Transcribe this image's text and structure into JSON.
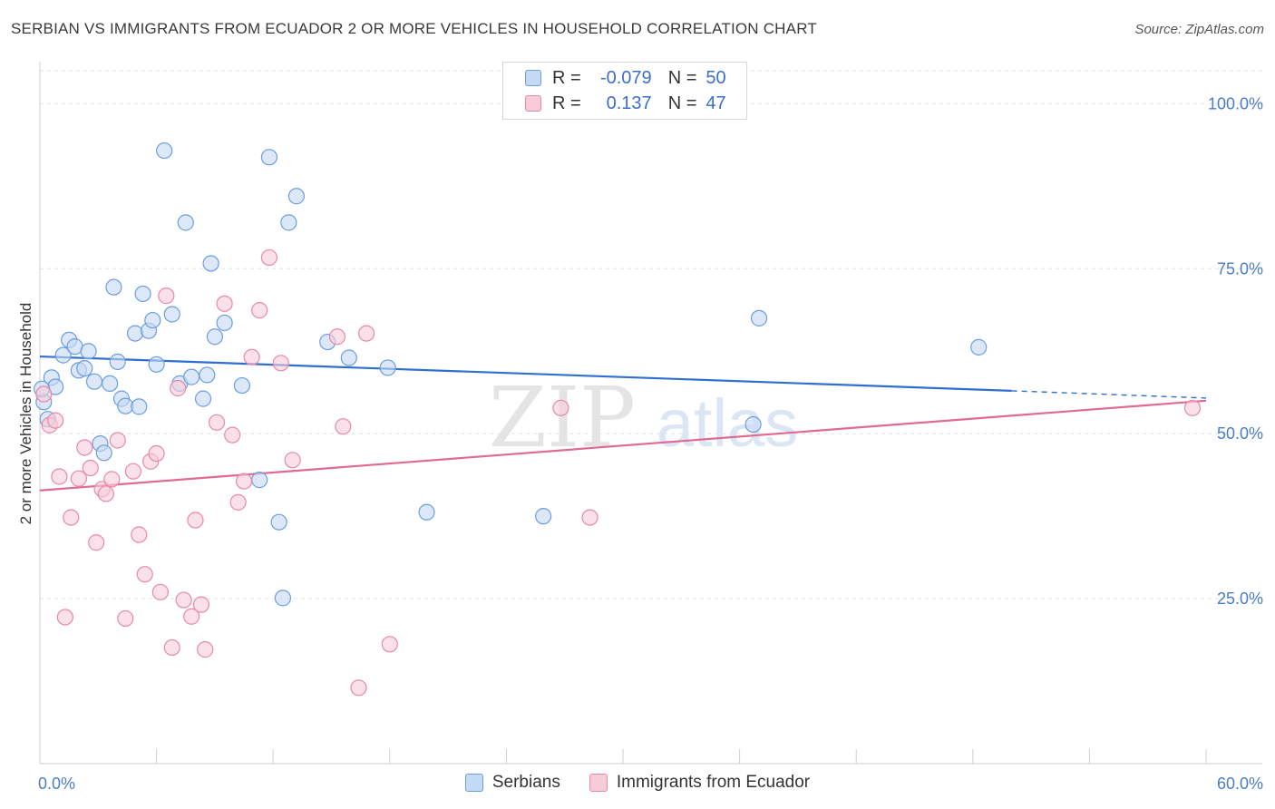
{
  "title": "SERBIAN VS IMMIGRANTS FROM ECUADOR 2 OR MORE VEHICLES IN HOUSEHOLD CORRELATION CHART",
  "source": "Source: ZipAtlas.com",
  "watermark": {
    "zip": "ZIP",
    "atlas": "atlas"
  },
  "legend": {
    "rows": [
      {
        "r_label": "R =",
        "r_value": "-0.079",
        "n_label": "N =",
        "n_value": "50"
      },
      {
        "r_label": "R =",
        "r_value": "0.137",
        "n_label": "N =",
        "n_value": "47"
      }
    ]
  },
  "chart_data": {
    "type": "scatter",
    "xlabel": "",
    "ylabel": "2 or more Vehicles in Household",
    "xlim": [
      0,
      60
    ],
    "ylim": [
      0,
      105
    ],
    "x_tick_labels": [
      "0.0%",
      "60.0%"
    ],
    "y_ticks": [
      25,
      50,
      75,
      100
    ],
    "y_tick_labels": [
      "25.0%",
      "50.0%",
      "75.0%",
      "100.0%"
    ],
    "grid": true,
    "legend_position": "bottom",
    "series": [
      {
        "name": "Serbians",
        "color": "#6b9de0",
        "fill": "#c4d9f3",
        "trend": {
          "x0": 0,
          "y0": 61.7,
          "x1": 50,
          "y1": 56.5,
          "dash_to_x": 60,
          "dash_to_y": 55.4
        },
        "points": [
          [
            0.2,
            54.8
          ],
          [
            0.4,
            52.2
          ],
          [
            0.6,
            58.5
          ],
          [
            0.8,
            57.1
          ],
          [
            1.2,
            61.9
          ],
          [
            1.5,
            64.2
          ],
          [
            1.8,
            63.2
          ],
          [
            2.0,
            59.6
          ],
          [
            2.3,
            59.9
          ],
          [
            2.5,
            62.5
          ],
          [
            2.8,
            57.9
          ],
          [
            3.1,
            48.5
          ],
          [
            3.3,
            47.1
          ],
          [
            3.6,
            57.6
          ],
          [
            3.8,
            72.2
          ],
          [
            4.0,
            60.9
          ],
          [
            4.2,
            55.3
          ],
          [
            4.4,
            54.2
          ],
          [
            4.9,
            65.2
          ],
          [
            5.1,
            54.1
          ],
          [
            5.3,
            71.2
          ],
          [
            5.6,
            65.6
          ],
          [
            5.8,
            67.2
          ],
          [
            6.0,
            60.5
          ],
          [
            6.4,
            92.9
          ],
          [
            6.8,
            68.1
          ],
          [
            7.2,
            57.6
          ],
          [
            7.5,
            82.0
          ],
          [
            7.8,
            58.6
          ],
          [
            8.4,
            55.3
          ],
          [
            8.6,
            58.9
          ],
          [
            8.8,
            75.8
          ],
          [
            9.0,
            64.7
          ],
          [
            9.5,
            66.8
          ],
          [
            10.4,
            57.3
          ],
          [
            11.3,
            43.0
          ],
          [
            11.8,
            91.9
          ],
          [
            12.3,
            36.6
          ],
          [
            12.5,
            25.1
          ],
          [
            12.8,
            82.0
          ],
          [
            13.2,
            86.0
          ],
          [
            14.8,
            63.9
          ],
          [
            15.9,
            61.5
          ],
          [
            17.9,
            60.0
          ],
          [
            19.9,
            38.1
          ],
          [
            25.9,
            37.5
          ],
          [
            36.7,
            51.4
          ],
          [
            37.0,
            67.5
          ],
          [
            48.3,
            63.1
          ],
          [
            0.1,
            56.8
          ]
        ]
      },
      {
        "name": "Immigrants from Ecuador",
        "color": "#e889a6",
        "fill": "#f7ccd8",
        "trend": {
          "x0": 0,
          "y0": 41.4,
          "x1": 60,
          "y1": 55.0
        },
        "points": [
          [
            0.2,
            56.0
          ],
          [
            0.5,
            51.3
          ],
          [
            0.8,
            52.0
          ],
          [
            1.0,
            43.5
          ],
          [
            1.3,
            22.2
          ],
          [
            1.6,
            37.3
          ],
          [
            2.0,
            43.2
          ],
          [
            2.3,
            47.9
          ],
          [
            2.6,
            44.8
          ],
          [
            2.9,
            33.5
          ],
          [
            3.2,
            41.6
          ],
          [
            3.4,
            40.9
          ],
          [
            3.7,
            43.1
          ],
          [
            4.0,
            49.0
          ],
          [
            4.4,
            22.0
          ],
          [
            4.8,
            44.3
          ],
          [
            5.1,
            34.7
          ],
          [
            5.4,
            28.7
          ],
          [
            5.7,
            45.8
          ],
          [
            6.0,
            47.0
          ],
          [
            6.2,
            26.0
          ],
          [
            6.5,
            70.9
          ],
          [
            6.8,
            17.6
          ],
          [
            7.1,
            56.9
          ],
          [
            7.4,
            24.8
          ],
          [
            7.8,
            22.3
          ],
          [
            8.0,
            36.9
          ],
          [
            8.3,
            24.1
          ],
          [
            8.5,
            17.3
          ],
          [
            9.1,
            51.7
          ],
          [
            9.5,
            69.7
          ],
          [
            9.9,
            49.8
          ],
          [
            10.2,
            39.6
          ],
          [
            10.5,
            42.8
          ],
          [
            10.9,
            61.6
          ],
          [
            11.3,
            68.7
          ],
          [
            11.8,
            76.7
          ],
          [
            12.4,
            60.7
          ],
          [
            13.0,
            46.0
          ],
          [
            15.3,
            64.7
          ],
          [
            15.6,
            51.1
          ],
          [
            16.4,
            11.5
          ],
          [
            16.8,
            65.2
          ],
          [
            18.0,
            18.1
          ],
          [
            26.8,
            53.9
          ],
          [
            28.3,
            37.3
          ],
          [
            59.3,
            53.9
          ]
        ]
      }
    ]
  }
}
